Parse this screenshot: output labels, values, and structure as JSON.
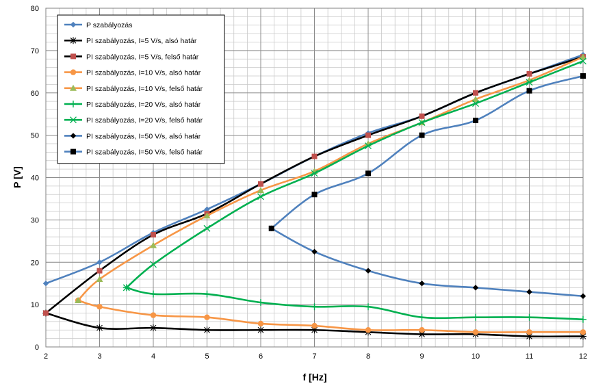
{
  "chart_data": {
    "type": "line",
    "xlabel": "f [Hz]",
    "ylabel": "P [V]",
    "xlim": [
      2,
      12
    ],
    "ylim": [
      0,
      80
    ],
    "xticks": [
      2,
      3,
      4,
      5,
      6,
      7,
      8,
      9,
      10,
      11,
      12
    ],
    "yticks": [
      0,
      10,
      20,
      30,
      40,
      50,
      60,
      70,
      80
    ],
    "grid": true,
    "legend_position": "top-left",
    "series": [
      {
        "name": "P szabályozás",
        "color": "#4f81bd",
        "marker": "diamond",
        "x": [
          2,
          3,
          4,
          5,
          6,
          7,
          8,
          9,
          10,
          11,
          12
        ],
        "y": [
          15,
          20,
          27,
          32.5,
          38.5,
          45,
          50.5,
          54.5,
          60,
          64.5,
          69
        ]
      },
      {
        "name": "PI szabályozás, I=5 V/s, alsó határ",
        "color": "#000000",
        "marker": "star",
        "x": [
          2,
          3,
          4,
          5,
          6,
          7,
          8,
          9,
          10,
          11,
          12
        ],
        "y": [
          8,
          4.5,
          4.5,
          4,
          4,
          4,
          3.5,
          3,
          3,
          2.5,
          2.5
        ]
      },
      {
        "name": "PI szabályozás, I=5 V/s, felső határ",
        "color": "#000000",
        "marker": "square",
        "markerColor": "#c0504d",
        "x": [
          2,
          3,
          4,
          5,
          6,
          7,
          8,
          9,
          10,
          11,
          12
        ],
        "y": [
          8,
          18,
          26.5,
          31.5,
          38.5,
          45,
          50,
          54.5,
          60,
          64.5,
          68.5
        ]
      },
      {
        "name": "PI szabályozás, I=10 V/s, alsó határ",
        "color": "#f79646",
        "marker": "circle",
        "x": [
          2.6,
          3,
          4,
          5,
          6,
          7,
          8,
          9,
          10,
          11,
          12
        ],
        "y": [
          11,
          9.5,
          7.5,
          7,
          5.5,
          5,
          4,
          4,
          3.5,
          3.5,
          3.5
        ]
      },
      {
        "name": "PI szabályozás, I=10 V/s, felső határ",
        "color": "#f79646",
        "marker": "triangle",
        "markerColor": "#9bbb59",
        "x": [
          2.6,
          3,
          4,
          5,
          6,
          7,
          8,
          9,
          10,
          11,
          12
        ],
        "y": [
          11,
          16,
          24,
          31,
          37,
          41.5,
          48,
          53,
          58.5,
          63,
          68.5
        ]
      },
      {
        "name": "PI szabályozás, I=20 V/s, alsó határ",
        "color": "#00b050",
        "marker": "plus",
        "x": [
          3.5,
          4,
          5,
          6,
          7,
          8,
          9,
          10,
          11,
          12
        ],
        "y": [
          14,
          12.5,
          12.5,
          10.5,
          9.5,
          9.5,
          7,
          7,
          7,
          6.5
        ]
      },
      {
        "name": "PI szabályozás, I=20 V/s, felső határ",
        "color": "#00b050",
        "marker": "x",
        "x": [
          3.5,
          4,
          5,
          6,
          7,
          8,
          9,
          10,
          11,
          12
        ],
        "y": [
          14,
          19.5,
          28,
          35.5,
          41,
          47.5,
          53,
          57.5,
          62.5,
          67.5
        ]
      },
      {
        "name": "PI szabályozás, I=50 V/s, alsó határ",
        "color": "#4f81bd",
        "marker": "diamond",
        "markerColor": "#000000",
        "x": [
          6.2,
          7,
          8,
          9,
          10,
          11,
          12
        ],
        "y": [
          28,
          22.5,
          18,
          15,
          14,
          13,
          12
        ]
      },
      {
        "name": "PI szabályozás, I=50 V/s, felső határ",
        "color": "#4f81bd",
        "marker": "square",
        "markerColor": "#000000",
        "x": [
          6.2,
          7,
          8,
          9,
          10,
          11,
          12
        ],
        "y": [
          28,
          36,
          41,
          50,
          53.5,
          60.5,
          64
        ]
      }
    ]
  }
}
